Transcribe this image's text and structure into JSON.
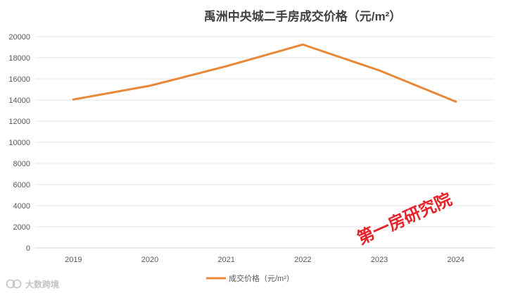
{
  "chart_data": {
    "type": "line",
    "title": "禹洲中央城二手房成交价格（元/m²）",
    "categories": [
      "2019",
      "2020",
      "2021",
      "2022",
      "2023",
      "2024"
    ],
    "series": [
      {
        "name": "成交价格（元/m²）",
        "values": [
          14050,
          15350,
          17200,
          19250,
          16800,
          13850
        ],
        "color": "#e8893a"
      }
    ],
    "ylim": [
      0,
      20000
    ],
    "yticks": [
      0,
      2000,
      4000,
      6000,
      8000,
      10000,
      12000,
      14000,
      16000,
      18000,
      20000
    ],
    "grid": true,
    "legend": "bottom-center"
  },
  "watermark": {
    "text": "第一房研究院",
    "color": "#e8242b"
  },
  "brand": {
    "text": "大数跨境",
    "icon": "brand-logo-icon"
  }
}
